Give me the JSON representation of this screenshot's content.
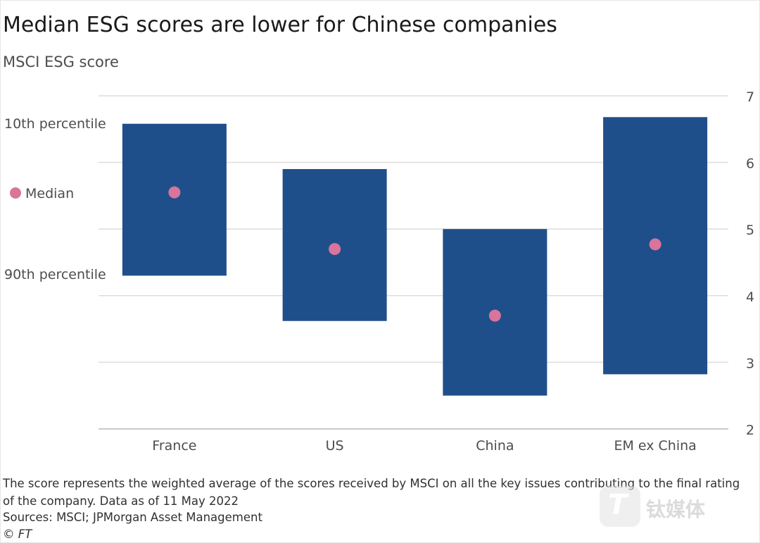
{
  "header": {
    "title": "Median ESG scores are lower for Chinese companies",
    "subtitle": "MSCI ESG score"
  },
  "legend": {
    "p10_label": "10th percentile",
    "median_label": "Median",
    "p90_label": "90th percentile"
  },
  "colors": {
    "bar": "#1f4f8a",
    "median_dot": "#d9749c",
    "grid": "#e0dcd8",
    "baseline": "#cfcac4"
  },
  "chart_data": {
    "type": "bar",
    "y_axis_side": "right",
    "ylim": [
      2,
      7
    ],
    "yticks": [
      2,
      3,
      4,
      5,
      6,
      7
    ],
    "categories": [
      "France",
      "US",
      "China",
      "EM ex China"
    ],
    "series": [
      {
        "name": "10th percentile",
        "values": [
          6.58,
          5.9,
          5.0,
          6.68
        ]
      },
      {
        "name": "Median",
        "values": [
          5.55,
          4.7,
          3.7,
          4.77
        ]
      },
      {
        "name": "90th percentile",
        "values": [
          4.3,
          3.62,
          2.5,
          2.82
        ]
      }
    ],
    "legend_placement": "left",
    "grid": true
  },
  "footer": {
    "note": "The score represents the weighted average of the scores received by MSCI on all the key issues contributing to the final rating of the company. Data as of 11 May 2022",
    "sources": "Sources: MSCI; JPMorgan Asset Management",
    "credit": "© FT"
  },
  "watermark": {
    "logo_letter": "T",
    "text": "钛媒体"
  }
}
